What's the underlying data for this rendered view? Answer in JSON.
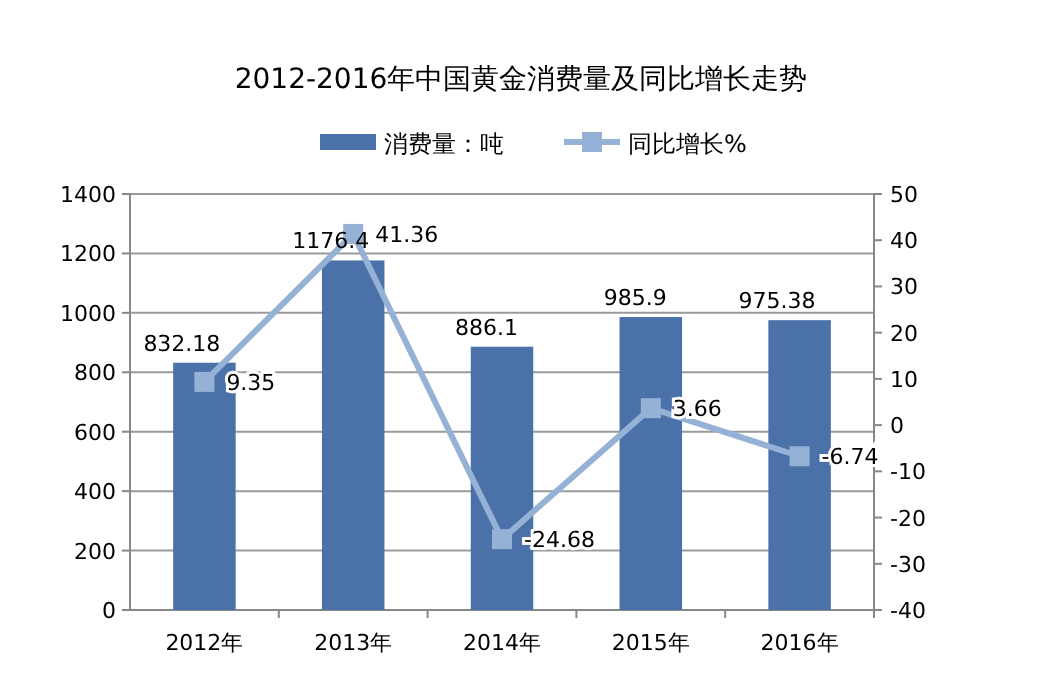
{
  "chart_data": {
    "type": "bar",
    "title": "2012-2016年中国黄金消费量及同比增长走势",
    "categories": [
      "2012年",
      "2013年",
      "2014年",
      "2015年",
      "2016年"
    ],
    "series": [
      {
        "name": "消费量：吨",
        "color": "#4a72a8",
        "values": [
          832.18,
          1176.4,
          886.1,
          985.9,
          975.38
        ]
      },
      {
        "name": "同比增长%",
        "type": "line",
        "axis": "y2",
        "marker": "square",
        "color": "#95b1d6",
        "values": [
          9.35,
          41.36,
          -24.68,
          3.66,
          -6.74
        ]
      }
    ],
    "ylim": [
      0,
      1400
    ],
    "yticks": [
      0,
      200,
      400,
      600,
      800,
      1000,
      1200,
      1400
    ],
    "y2lim": [
      -40,
      50
    ],
    "y2ticks": [
      -40,
      -30,
      -20,
      -10,
      0,
      10,
      20,
      30,
      40,
      50
    ],
    "data_labels": true,
    "grid": "y",
    "legend": "top"
  }
}
